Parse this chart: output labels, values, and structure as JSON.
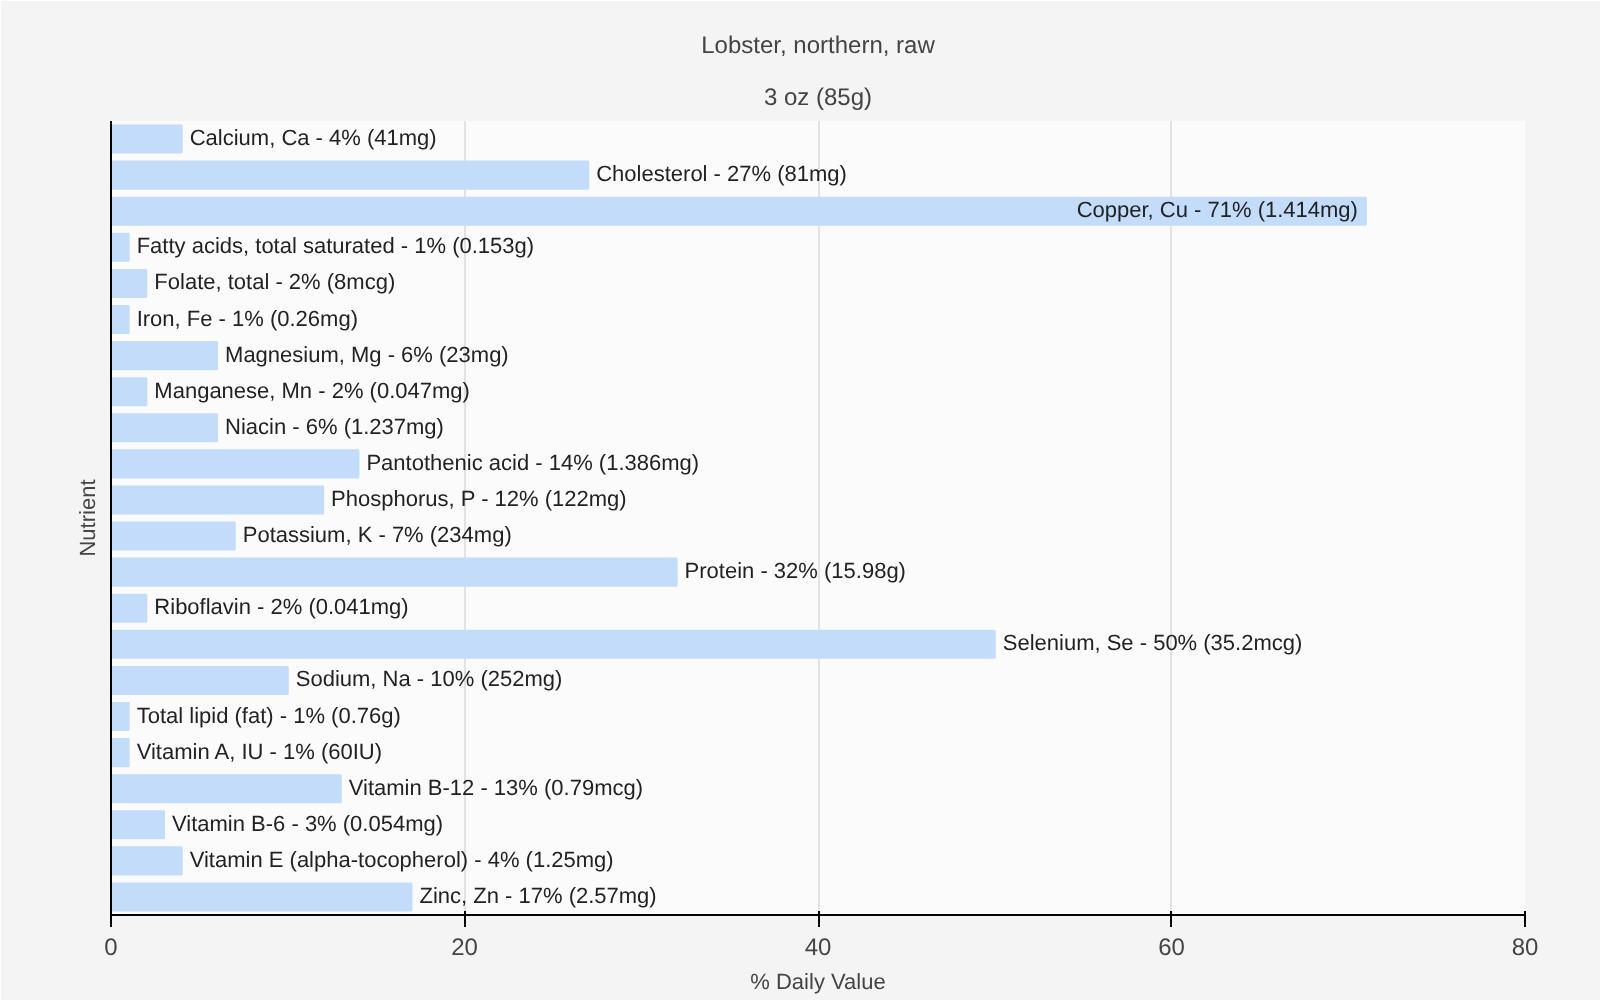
{
  "chart_data": {
    "type": "bar",
    "orientation": "horizontal",
    "title": "Lobster, northern, raw",
    "subtitle": "3 oz (85g)",
    "xlabel": "% Daily Value",
    "ylabel": "Nutrient",
    "color": "#c2dcfa",
    "categories": [
      "Calcium, Ca - 4% (41mg)",
      "Cholesterol - 27% (81mg)",
      "Copper, Cu - 71% (1.414mg)",
      "Fatty acids, total saturated - 1% (0.153g)",
      "Folate, total - 2% (8mcg)",
      "Iron, Fe - 1% (0.26mg)",
      "Magnesium, Mg - 6% (23mg)",
      "Manganese, Mn - 2% (0.047mg)",
      "Niacin - 6% (1.237mg)",
      "Pantothenic acid - 14% (1.386mg)",
      "Phosphorus, P - 12% (122mg)",
      "Potassium, K - 7% (234mg)",
      "Protein - 32% (15.98g)",
      "Riboflavin - 2% (0.041mg)",
      "Selenium, Se - 50% (35.2mcg)",
      "Sodium, Na - 10% (252mg)",
      "Total lipid (fat) - 1% (0.76g)",
      "Vitamin A, IU - 1% (60IU)",
      "Vitamin B-12 - 13% (0.79mcg)",
      "Vitamin B-6 - 3% (0.054mg)",
      "Vitamin E (alpha-tocopherol) - 4% (1.25mg)",
      "Zinc, Zn - 17% (2.57mg)"
    ],
    "values": [
      4,
      27,
      71,
      1,
      2,
      1,
      6,
      2,
      6,
      14,
      12,
      7,
      32,
      2,
      50,
      10,
      1,
      1,
      13,
      3,
      4,
      17
    ],
    "xlim": [
      0,
      80
    ],
    "xticks": [
      0,
      20,
      40,
      60,
      80
    ],
    "grid": "x",
    "tick_labels": "x"
  }
}
